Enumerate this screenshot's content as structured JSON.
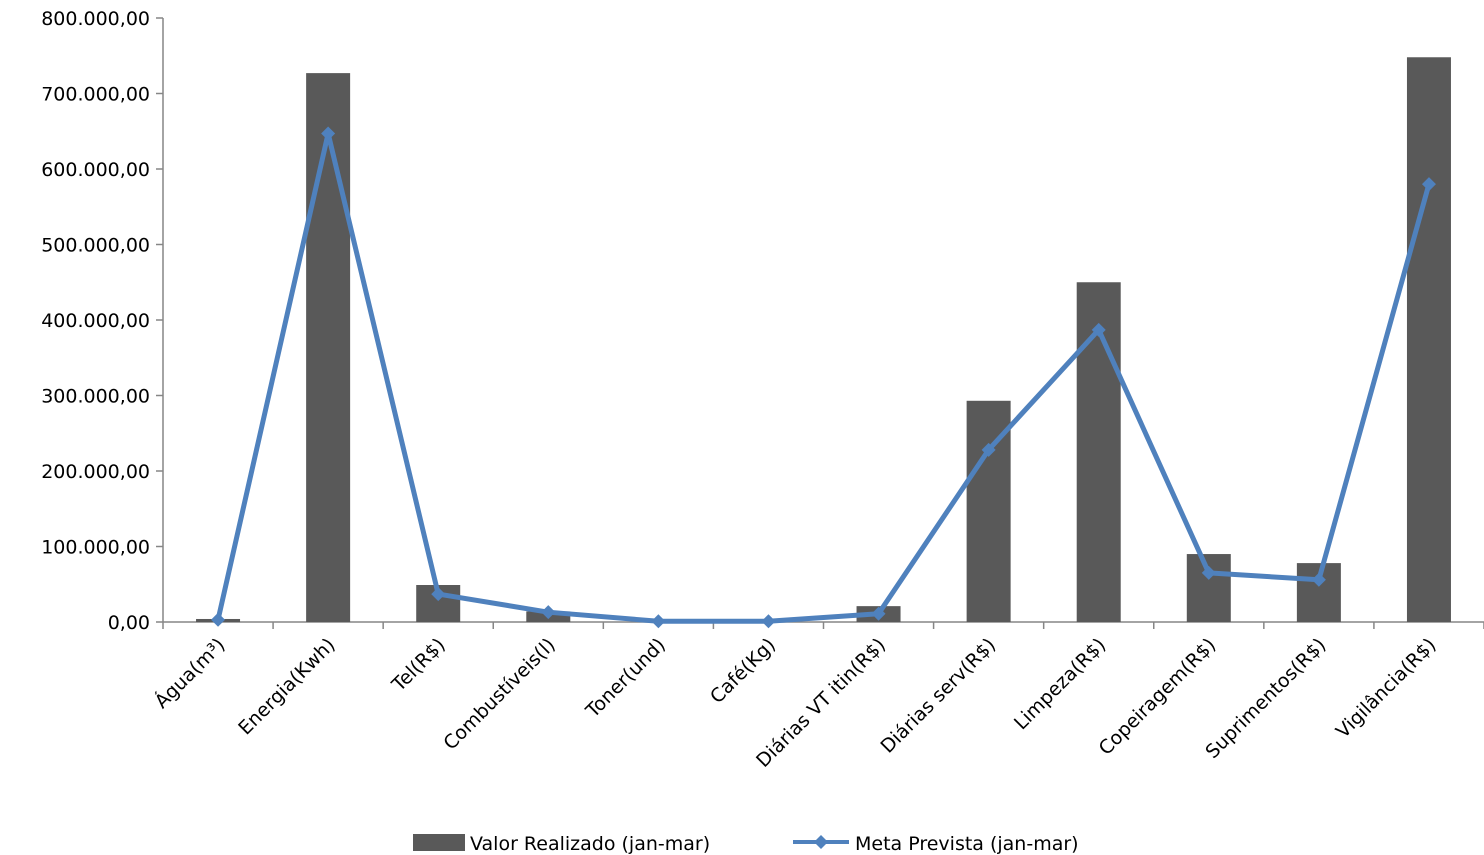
{
  "chart_data": {
    "type": "bar",
    "categories": [
      "Água(m³)",
      "Energia(Kwh)",
      "Tel(R$)",
      "Combustíveis(l)",
      "Toner(und)",
      "Café(Kg)",
      "Diárias VT itin(R$)",
      "Diárias serv(R$)",
      "Limpeza(R$)",
      "Copeiragem(R$)",
      "Suprimentos(R$)",
      "Vigilância(R$)"
    ],
    "series": [
      {
        "name": "Valor Realizado (jan-mar)",
        "type": "bar",
        "color": "#595959",
        "values": [
          4000,
          727000,
          49000,
          14000,
          0,
          0,
          21000,
          293000,
          450000,
          90000,
          78000,
          748000
        ]
      },
      {
        "name": "Meta Prevista (jan-mar)",
        "type": "line",
        "color": "#4F81BD",
        "marker": "diamond",
        "values": [
          3000,
          647000,
          37000,
          13000,
          1000,
          1000,
          11000,
          228000,
          387000,
          65000,
          56000,
          580000
        ]
      }
    ],
    "ylim": [
      0,
      800000
    ],
    "yticks": [
      0,
      100000,
      200000,
      300000,
      400000,
      500000,
      600000,
      700000,
      800000
    ],
    "ytick_labels": [
      "0,00",
      "100.000,00",
      "200.000,00",
      "300.000,00",
      "400.000,00",
      "500.000,00",
      "600.000,00",
      "700.000,00",
      "800.000,00"
    ],
    "title": "",
    "xlabel": "",
    "ylabel": "",
    "grid": false,
    "legend_position": "bottom"
  }
}
